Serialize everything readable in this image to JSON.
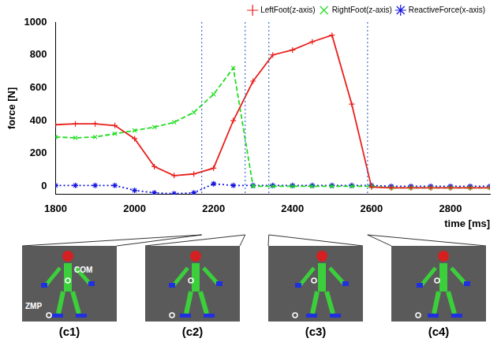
{
  "chart_data": {
    "type": "line",
    "x": [
      1800,
      1850,
      1900,
      1950,
      2000,
      2050,
      2100,
      2150,
      2200,
      2250,
      2300,
      2350,
      2400,
      2450,
      2500,
      2550,
      2600,
      2650,
      2700,
      2750,
      2800,
      2850,
      2900
    ],
    "series": [
      {
        "name": "LeftFoot(z-axis)",
        "color": "#e8201c",
        "marker": "plus",
        "line_style": "solid",
        "values": [
          375,
          380,
          380,
          370,
          290,
          120,
          65,
          75,
          110,
          400,
          640,
          800,
          830,
          880,
          920,
          500,
          -5,
          -10,
          -10,
          -10,
          -10,
          -10,
          -10
        ]
      },
      {
        "name": "RightFoot(z-axis)",
        "color": "#22dd22",
        "marker": "x",
        "line_style": "dashed",
        "values": [
          300,
          295,
          300,
          320,
          340,
          360,
          390,
          450,
          560,
          720,
          0,
          0,
          0,
          0,
          0,
          0,
          0,
          -10,
          -10,
          -10,
          -10,
          -10,
          -10
        ]
      },
      {
        "name": "ReactiveForce(x-axis)",
        "color": "#1414e0",
        "marker": "star",
        "line_style": "dotted",
        "values": [
          5,
          5,
          5,
          5,
          -25,
          -40,
          -45,
          -40,
          15,
          5,
          5,
          5,
          5,
          5,
          5,
          5,
          5,
          0,
          0,
          0,
          0,
          0,
          0
        ]
      }
    ],
    "x_label": "time [ms]",
    "y_label": "force [N]",
    "xlim": [
      1800,
      2900
    ],
    "xticks": [
      1800,
      2000,
      2200,
      2400,
      2600,
      2800
    ],
    "ylim": [
      -50,
      1000
    ],
    "yticks": [
      0,
      200,
      400,
      600,
      800,
      1000
    ],
    "vlines": [
      2170,
      2280,
      2340,
      2590
    ],
    "grid": false,
    "legend": "top-right"
  },
  "panels": [
    {
      "label": "(c1)",
      "annotations": [
        "COM",
        "ZMP"
      ]
    },
    {
      "label": "(c2)",
      "annotations": []
    },
    {
      "label": "(c3)",
      "annotations": []
    },
    {
      "label": "(c4)",
      "annotations": []
    }
  ]
}
